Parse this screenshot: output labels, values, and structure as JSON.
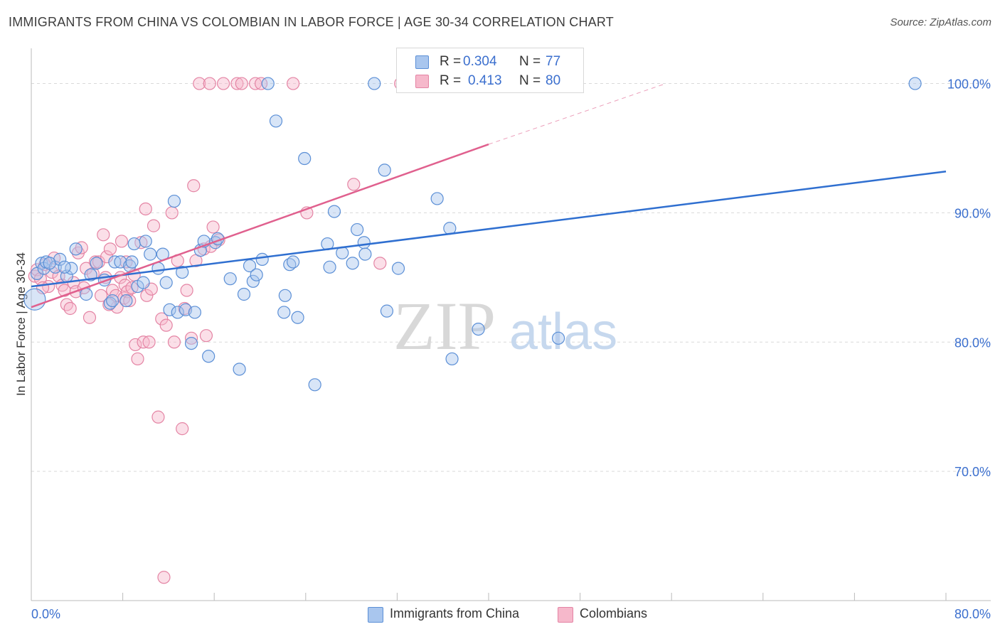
{
  "title": "IMMIGRANTS FROM CHINA VS COLOMBIAN IN LABOR FORCE | AGE 30-34 CORRELATION CHART",
  "source": "Source: ZipAtlas.com",
  "watermark": {
    "zip": "ZIP",
    "atlas": "atlas"
  },
  "legend_stats": [
    {
      "r_label": "R =",
      "r_value": "0.304",
      "n_label": "N =",
      "n_value": "77"
    },
    {
      "r_label": "R =",
      "r_value": "0.413",
      "n_label": "N =",
      "n_value": "80"
    }
  ],
  "colors": {
    "china_fill": "#a9c6ee",
    "china_stroke": "#5b8fd6",
    "china_line": "#2f6fd0",
    "colombian_fill": "#f6b8cb",
    "colombian_stroke": "#e484a4",
    "colombian_line": "#e0608e",
    "tick_label": "#3b6fce",
    "grid": "#d9d9d9"
  },
  "chart_data": {
    "type": "scatter",
    "title": "IMMIGRANTS FROM CHINA VS COLOMBIAN IN LABOR FORCE | AGE 30-34 CORRELATION CHART",
    "xlabel": "",
    "ylabel": "In Labor Force | Age 30-34",
    "xlim": [
      0,
      80
    ],
    "ylim": [
      60,
      103
    ],
    "x_tick_labels": [
      "0.0%",
      "80.0%"
    ],
    "y_ticks": [
      70,
      80,
      90,
      100
    ],
    "y_tick_labels": [
      "70.0%",
      "80.0%",
      "90.0%",
      "100.0%"
    ],
    "grid": true,
    "legend_position": "top-center",
    "series": [
      {
        "name": "Immigrants from China",
        "r": 0.304,
        "n": 77,
        "trend": {
          "x": [
            0,
            80
          ],
          "y": [
            84.3,
            93.2
          ],
          "dashed_to": null
        },
        "points": [
          [
            0.3,
            83.3,
            2
          ],
          [
            0.5,
            85.3,
            1
          ],
          [
            0.9,
            86.1,
            1
          ],
          [
            1.1,
            85.7,
            1
          ],
          [
            1.3,
            86.2,
            1
          ],
          [
            2.1,
            85.8,
            1
          ],
          [
            2.5,
            86.4,
            1
          ],
          [
            3.1,
            85.1,
            1
          ],
          [
            3.5,
            85.7,
            1
          ],
          [
            3.9,
            87.2,
            1
          ],
          [
            4.8,
            83.7,
            1
          ],
          [
            5.2,
            85.2,
            1
          ],
          [
            5.7,
            86.1,
            1
          ],
          [
            6.4,
            84.8,
            1
          ],
          [
            6.9,
            83.0,
            1
          ],
          [
            7.3,
            86.2,
            1
          ],
          [
            7.8,
            86.2,
            1
          ],
          [
            8.3,
            83.2,
            1
          ],
          [
            8.6,
            85.9,
            1
          ],
          [
            8.8,
            86.2,
            1
          ],
          [
            9.0,
            87.6,
            1
          ],
          [
            9.3,
            84.3,
            1
          ],
          [
            9.8,
            84.6,
            1
          ],
          [
            10.0,
            87.8,
            1
          ],
          [
            10.4,
            86.8,
            1
          ],
          [
            11.1,
            85.7,
            1
          ],
          [
            11.5,
            86.8,
            1
          ],
          [
            11.8,
            84.6,
            1
          ],
          [
            12.1,
            82.5,
            1
          ],
          [
            12.5,
            90.9,
            1
          ],
          [
            12.8,
            82.3,
            1
          ],
          [
            13.2,
            85.4,
            1
          ],
          [
            13.5,
            82.5,
            1
          ],
          [
            14.0,
            79.9,
            1
          ],
          [
            14.3,
            82.3,
            1
          ],
          [
            14.8,
            87.1,
            1
          ],
          [
            15.1,
            87.8,
            1
          ],
          [
            15.5,
            78.9,
            1
          ],
          [
            16.1,
            87.7,
            1
          ],
          [
            16.3,
            88.0,
            1
          ],
          [
            17.4,
            84.9,
            1
          ],
          [
            18.2,
            77.9,
            1
          ],
          [
            18.6,
            83.7,
            1
          ],
          [
            19.1,
            85.9,
            1
          ],
          [
            19.4,
            84.7,
            1
          ],
          [
            19.7,
            85.2,
            1
          ],
          [
            20.2,
            86.4,
            1
          ],
          [
            20.7,
            100.0,
            1
          ],
          [
            21.4,
            97.1,
            1
          ],
          [
            22.1,
            82.3,
            1
          ],
          [
            22.2,
            83.6,
            1
          ],
          [
            22.6,
            86.0,
            1
          ],
          [
            22.9,
            86.2,
            1
          ],
          [
            23.3,
            81.9,
            1
          ],
          [
            23.9,
            94.2,
            1
          ],
          [
            24.8,
            76.7,
            1
          ],
          [
            25.9,
            87.6,
            1
          ],
          [
            26.1,
            85.8,
            1
          ],
          [
            26.5,
            90.1,
            1
          ],
          [
            27.2,
            86.9,
            1
          ],
          [
            28.1,
            86.1,
            1
          ],
          [
            28.5,
            88.7,
            1
          ],
          [
            29.1,
            87.7,
            1
          ],
          [
            29.2,
            86.8,
            1
          ],
          [
            30.0,
            100.0,
            1
          ],
          [
            30.9,
            93.3,
            1
          ],
          [
            31.1,
            82.4,
            1
          ],
          [
            32.1,
            85.7,
            1
          ],
          [
            35.5,
            91.1,
            1
          ],
          [
            36.6,
            88.8,
            1
          ],
          [
            36.8,
            78.7,
            1
          ],
          [
            39.1,
            81.0,
            1
          ],
          [
            46.1,
            80.3,
            1
          ],
          [
            77.3,
            100.0,
            1
          ],
          [
            1.6,
            86.1,
            1
          ],
          [
            2.9,
            85.8,
            1
          ],
          [
            7.1,
            83.2,
            1
          ]
        ]
      },
      {
        "name": "Colombians",
        "r": 0.413,
        "n": 80,
        "trend": {
          "x": [
            0,
            40
          ],
          "y": [
            82.7,
            95.3
          ],
          "dashed_to": [
            55.5,
            100.0
          ]
        },
        "points": [
          [
            0.3,
            85.1,
            1
          ],
          [
            0.5,
            85.6,
            1
          ],
          [
            0.8,
            84.9,
            1
          ],
          [
            1.2,
            86.0,
            1
          ],
          [
            1.5,
            84.3,
            1
          ],
          [
            1.8,
            85.4,
            1
          ],
          [
            2.0,
            86.5,
            1
          ],
          [
            2.4,
            85.1,
            1
          ],
          [
            2.7,
            84.4,
            1
          ],
          [
            2.9,
            84.0,
            1
          ],
          [
            3.1,
            82.9,
            1
          ],
          [
            3.4,
            82.6,
            1
          ],
          [
            3.7,
            84.6,
            1
          ],
          [
            3.9,
            83.9,
            1
          ],
          [
            4.1,
            86.9,
            1
          ],
          [
            4.4,
            87.3,
            1
          ],
          [
            4.6,
            84.2,
            1
          ],
          [
            4.8,
            85.7,
            1
          ],
          [
            5.1,
            81.9,
            1
          ],
          [
            5.4,
            85.3,
            1
          ],
          [
            5.6,
            86.2,
            1
          ],
          [
            5.9,
            86.2,
            1
          ],
          [
            6.1,
            83.6,
            1
          ],
          [
            6.3,
            88.3,
            1
          ],
          [
            6.5,
            85.0,
            1
          ],
          [
            6.6,
            86.6,
            1
          ],
          [
            6.9,
            87.2,
            1
          ],
          [
            7.1,
            84.0,
            1
          ],
          [
            7.4,
            83.6,
            1
          ],
          [
            7.5,
            82.7,
            1
          ],
          [
            7.8,
            85.0,
            1
          ],
          [
            7.9,
            87.8,
            1
          ],
          [
            8.1,
            83.4,
            1
          ],
          [
            8.2,
            84.4,
            1
          ],
          [
            8.3,
            86.2,
            1
          ],
          [
            8.4,
            83.9,
            1
          ],
          [
            8.6,
            83.2,
            1
          ],
          [
            8.8,
            84.2,
            1
          ],
          [
            9.0,
            85.2,
            1
          ],
          [
            9.1,
            79.8,
            1
          ],
          [
            9.3,
            78.7,
            1
          ],
          [
            9.6,
            87.7,
            1
          ],
          [
            9.8,
            80.0,
            1
          ],
          [
            10.0,
            90.3,
            1
          ],
          [
            10.1,
            83.6,
            1
          ],
          [
            10.3,
            80.0,
            1
          ],
          [
            10.5,
            84.1,
            1
          ],
          [
            10.7,
            89.0,
            1
          ],
          [
            11.1,
            74.2,
            1
          ],
          [
            11.4,
            81.8,
            1
          ],
          [
            11.8,
            81.3,
            1
          ],
          [
            12.3,
            90.0,
            1
          ],
          [
            12.5,
            80.0,
            1
          ],
          [
            12.8,
            86.3,
            1
          ],
          [
            13.2,
            73.3,
            1
          ],
          [
            13.4,
            82.6,
            1
          ],
          [
            13.6,
            84.0,
            1
          ],
          [
            14.0,
            80.3,
            1
          ],
          [
            14.4,
            86.3,
            1
          ],
          [
            14.7,
            100.0,
            1
          ],
          [
            15.1,
            87.2,
            1
          ],
          [
            15.3,
            80.5,
            1
          ],
          [
            15.6,
            100.0,
            1
          ],
          [
            15.7,
            87.4,
            1
          ],
          [
            15.9,
            88.9,
            1
          ],
          [
            16.4,
            87.9,
            1
          ],
          [
            16.8,
            100.0,
            1
          ],
          [
            18.0,
            100.0,
            1
          ],
          [
            18.4,
            100.0,
            1
          ],
          [
            19.6,
            100.0,
            1
          ],
          [
            20.1,
            100.0,
            1
          ],
          [
            22.9,
            100.0,
            1
          ],
          [
            24.1,
            90.0,
            1
          ],
          [
            28.2,
            92.2,
            1
          ],
          [
            30.5,
            86.1,
            1
          ],
          [
            32.3,
            100.0,
            1
          ],
          [
            11.6,
            61.8,
            1
          ],
          [
            14.2,
            92.1,
            1
          ],
          [
            1.0,
            84.2,
            1
          ],
          [
            6.8,
            82.9,
            1
          ]
        ]
      }
    ]
  }
}
